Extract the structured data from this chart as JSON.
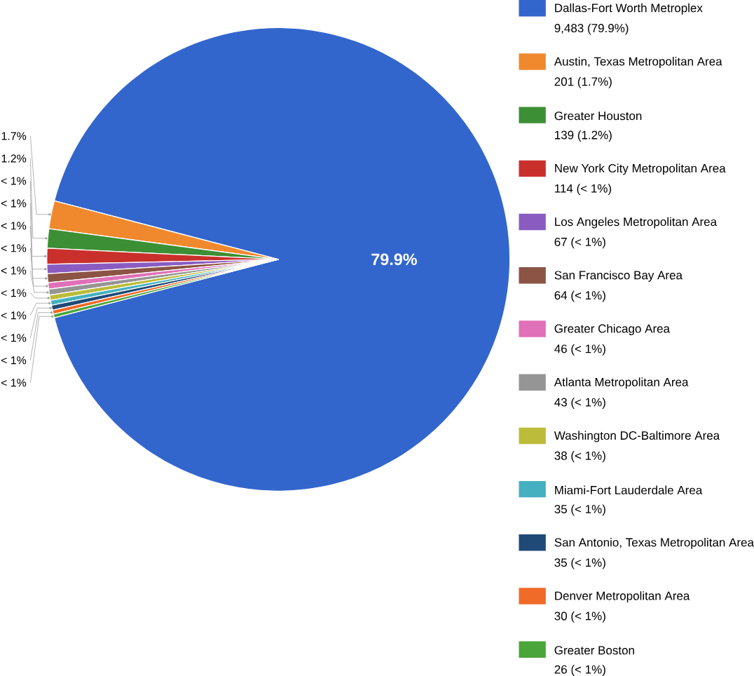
{
  "chart_data": {
    "type": "pie",
    "categories": [
      "Dallas-Fort Worth Metroplex",
      "Austin, Texas Metropolitan Area",
      "Greater Houston",
      "New York City Metropolitan Area",
      "Los Angeles Metropolitan Area",
      "San Francisco Bay Area",
      "Greater Chicago Area",
      "Atlanta Metropolitan Area",
      "Washington DC-Baltimore Area",
      "Miami-Fort Lauderdale Area",
      "San Antonio, Texas Metropolitan Area",
      "Denver Metropolitan Area",
      "Greater Boston"
    ],
    "values": [
      9483,
      201,
      139,
      114,
      67,
      64,
      46,
      43,
      38,
      35,
      35,
      30,
      26
    ],
    "colors": [
      "#3366cc",
      "#f0892e",
      "#3d8f35",
      "#c9302c",
      "#8a5cc2",
      "#8b5445",
      "#e070b8",
      "#959595",
      "#bcbc3a",
      "#45b0c0",
      "#1f4a78",
      "#f06a28",
      "#4aa53a"
    ],
    "value_labels": [
      "9,483  (79.9%)",
      "201  (1.7%)",
      "139  (1.2%)",
      "114  (< 1%)",
      "67  (< 1%)",
      "64  (< 1%)",
      "46  (< 1%)",
      "43  (< 1%)",
      "38  (< 1%)",
      "35  (< 1%)",
      "35  (< 1%)",
      "30  (< 1%)",
      "26  (< 1%)"
    ],
    "annotations": [
      {
        "text": "79.9%",
        "x": "Dallas-Fort Worth Metroplex"
      },
      {
        "text": "1.7%",
        "x": "Austin, Texas Metropolitan Area"
      },
      {
        "text": "1.2%",
        "x": "Greater Houston"
      },
      {
        "text": "< 1%",
        "x": "New York City Metropolitan Area"
      },
      {
        "text": "< 1%",
        "x": "Los Angeles Metropolitan Area"
      },
      {
        "text": "< 1%",
        "x": "San Francisco Bay Area"
      },
      {
        "text": "< 1%",
        "x": "Greater Chicago Area"
      },
      {
        "text": "< 1%",
        "x": "Atlanta Metropolitan Area"
      },
      {
        "text": "< 1%",
        "x": "Washington DC-Baltimore Area"
      },
      {
        "text": "< 1%",
        "x": "Miami-Fort Lauderdale Area"
      },
      {
        "text": "< 1%",
        "x": "San Antonio, Texas Metropolitan Area"
      },
      {
        "text": "< 1%",
        "x": "Denver Metropolitan Area"
      },
      {
        "text": "< 1%",
        "x": "Greater Boston"
      }
    ],
    "legend": "right"
  }
}
